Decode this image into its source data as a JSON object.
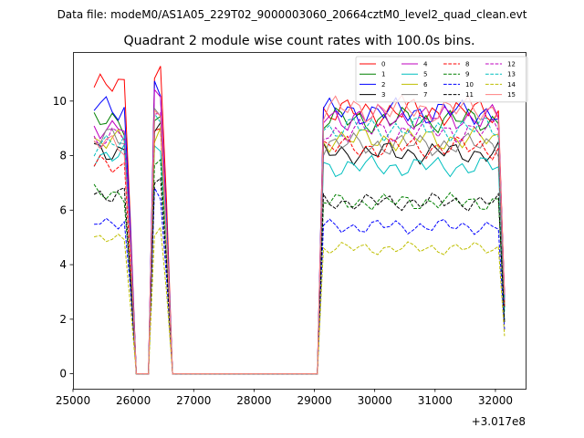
{
  "suptitle": "Data file: modeM0/AS1A05_229T02_9000003060_20664cztM0_level2_quad_clean.evt",
  "chart_data": {
    "type": "line",
    "title": "Quadrant 2 module wise count rates with 100.0s bins.",
    "xlabel": "",
    "ylabel": "",
    "offset_text": "+3.017e8",
    "xlim": [
      25000,
      32500
    ],
    "ylim": [
      -0.55,
      11.8
    ],
    "x_ticks": [
      25000,
      26000,
      27000,
      28000,
      29000,
      30000,
      31000,
      32000
    ],
    "x_tick_labels": [
      "25000",
      "26000",
      "27000",
      "28000",
      "29000",
      "30000",
      "31000",
      "32000"
    ],
    "y_ticks": [
      0,
      2,
      4,
      6,
      8,
      10
    ],
    "y_tick_labels": [
      "0",
      "2",
      "4",
      "6",
      "8",
      "10"
    ],
    "x": [
      25350,
      25450,
      25550,
      25650,
      25750,
      25850,
      25950,
      26050,
      26150,
      26250,
      26350,
      26450,
      26550,
      26650,
      26750,
      26850,
      26950,
      27050,
      27150,
      27250,
      27350,
      27450,
      27550,
      27650,
      27750,
      27850,
      27950,
      28050,
      28150,
      28250,
      28350,
      28450,
      28550,
      28650,
      28750,
      28850,
      28950,
      29050,
      29150,
      29250,
      29350,
      29450,
      29550,
      29650,
      29750,
      29850,
      29950,
      30050,
      30150,
      30250,
      30350,
      30450,
      30550,
      30650,
      30750,
      30850,
      30950,
      31050,
      31150,
      31250,
      31350,
      31450,
      31550,
      31650,
      31750,
      31850,
      31950,
      32050,
      32150
    ],
    "legend": {
      "location": "top-right",
      "columns": 4
    },
    "series": [
      {
        "name": "0",
        "color": "#ff0000",
        "dashed": false,
        "levels": [
          10.5,
          11.2,
          9.6
        ]
      },
      {
        "name": "1",
        "color": "#008000",
        "dashed": false,
        "levels": [
          9.2,
          9.0,
          9.3
        ]
      },
      {
        "name": "2",
        "color": "#0000ff",
        "dashed": false,
        "levels": [
          9.8,
          10.4,
          9.6
        ]
      },
      {
        "name": "3",
        "color": "#000000",
        "dashed": false,
        "levels": [
          8.2,
          9.1,
          8.1
        ]
      },
      {
        "name": "4",
        "color": "#bf00bf",
        "dashed": false,
        "levels": [
          9.1,
          10.2,
          9.4
        ]
      },
      {
        "name": "5",
        "color": "#00bfbf",
        "dashed": false,
        "levels": [
          8.0,
          8.6,
          7.6
        ]
      },
      {
        "name": "6",
        "color": "#bfbf00",
        "dashed": false,
        "levels": [
          8.5,
          8.8,
          8.6
        ]
      },
      {
        "name": "7",
        "color": "#808080",
        "dashed": false,
        "levels": [
          8.6,
          9.4,
          8.4
        ]
      },
      {
        "name": "8",
        "color": "#ff0000",
        "dashed": true,
        "levels": [
          7.6,
          9.0,
          8.3
        ]
      },
      {
        "name": "9",
        "color": "#008000",
        "dashed": true,
        "levels": [
          6.6,
          7.5,
          6.3
        ]
      },
      {
        "name": "10",
        "color": "#0000ff",
        "dashed": true,
        "levels": [
          5.6,
          6.6,
          5.4
        ]
      },
      {
        "name": "11",
        "color": "#000000",
        "dashed": true,
        "levels": [
          6.6,
          7.3,
          6.3
        ]
      },
      {
        "name": "12",
        "color": "#bf00bf",
        "dashed": true,
        "levels": [
          8.7,
          9.5,
          8.9
        ]
      },
      {
        "name": "13",
        "color": "#00bfbf",
        "dashed": true,
        "levels": [
          8.4,
          9.6,
          9.0
        ]
      },
      {
        "name": "14",
        "color": "#bfbf00",
        "dashed": true,
        "levels": [
          4.9,
          5.2,
          4.6
        ]
      },
      {
        "name": "15",
        "color": "#ff8080",
        "dashed": false,
        "levels": [
          8.4,
          9.2,
          9.7
        ]
      }
    ]
  }
}
